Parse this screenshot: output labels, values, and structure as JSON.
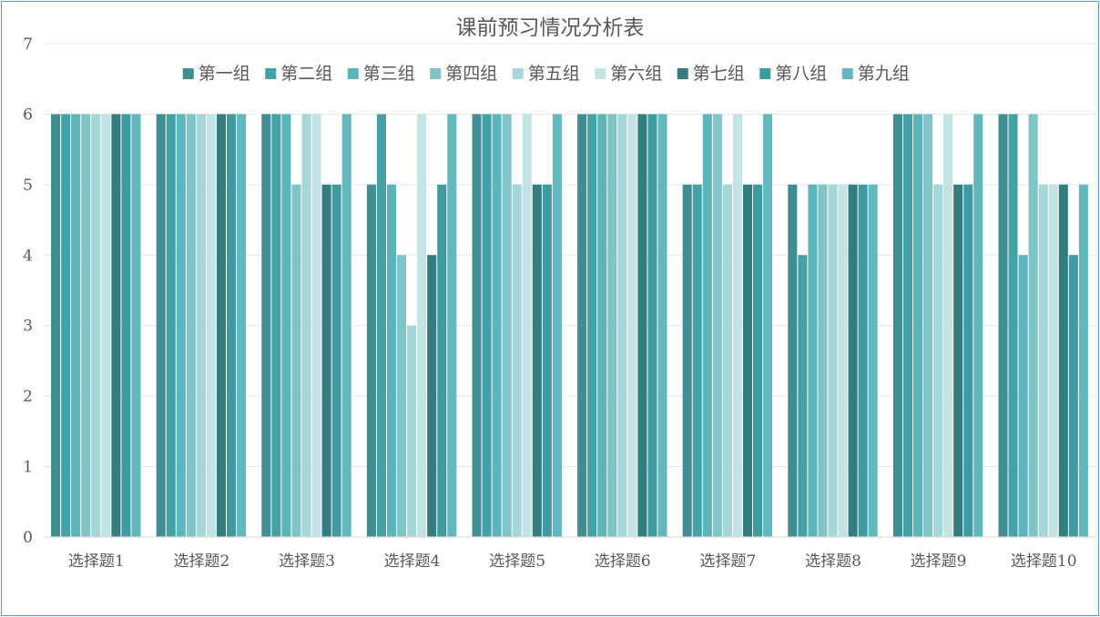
{
  "chart_data": {
    "type": "bar",
    "title": "课前预习情况分析表",
    "categories": [
      "选择题1",
      "选择题2",
      "选择题3",
      "选择题4",
      "选择题5",
      "选择题6",
      "选择题7",
      "选择题8",
      "选择题9",
      "选择题10"
    ],
    "ylim": [
      0,
      7
    ],
    "yticks": [
      0,
      1,
      2,
      3,
      4,
      5,
      6,
      7
    ],
    "grid": true,
    "legend_position": "top",
    "series": [
      {
        "name": "第一组",
        "color": "#3f8e92",
        "values": [
          6,
          6,
          6,
          5,
          6,
          6,
          5,
          5,
          6,
          6
        ]
      },
      {
        "name": "第二组",
        "color": "#44a2a7",
        "values": [
          6,
          6,
          6,
          6,
          6,
          6,
          5,
          4,
          6,
          6
        ]
      },
      {
        "name": "第三组",
        "color": "#5bb5ba",
        "values": [
          6,
          6,
          6,
          5,
          6,
          6,
          6,
          5,
          6,
          4
        ]
      },
      {
        "name": "第四组",
        "color": "#80c4c8",
        "values": [
          6,
          6,
          5,
          4,
          6,
          6,
          6,
          5,
          6,
          6
        ]
      },
      {
        "name": "第五组",
        "color": "#a5d6d8",
        "values": [
          6,
          6,
          6,
          3,
          5,
          6,
          5,
          5,
          5,
          5
        ]
      },
      {
        "name": "第六组",
        "color": "#c3e3e4",
        "values": [
          6,
          6,
          6,
          6,
          6,
          6,
          6,
          5,
          6,
          5
        ]
      },
      {
        "name": "第七组",
        "color": "#337d80",
        "values": [
          6,
          6,
          5,
          4,
          5,
          6,
          5,
          5,
          5,
          5
        ]
      },
      {
        "name": "第八组",
        "color": "#3e9ba0",
        "values": [
          6,
          6,
          5,
          5,
          5,
          6,
          5,
          5,
          5,
          4
        ]
      },
      {
        "name": "第九组",
        "color": "#61b9bd",
        "values": [
          6,
          6,
          6,
          6,
          6,
          6,
          6,
          5,
          6,
          5
        ]
      }
    ]
  }
}
